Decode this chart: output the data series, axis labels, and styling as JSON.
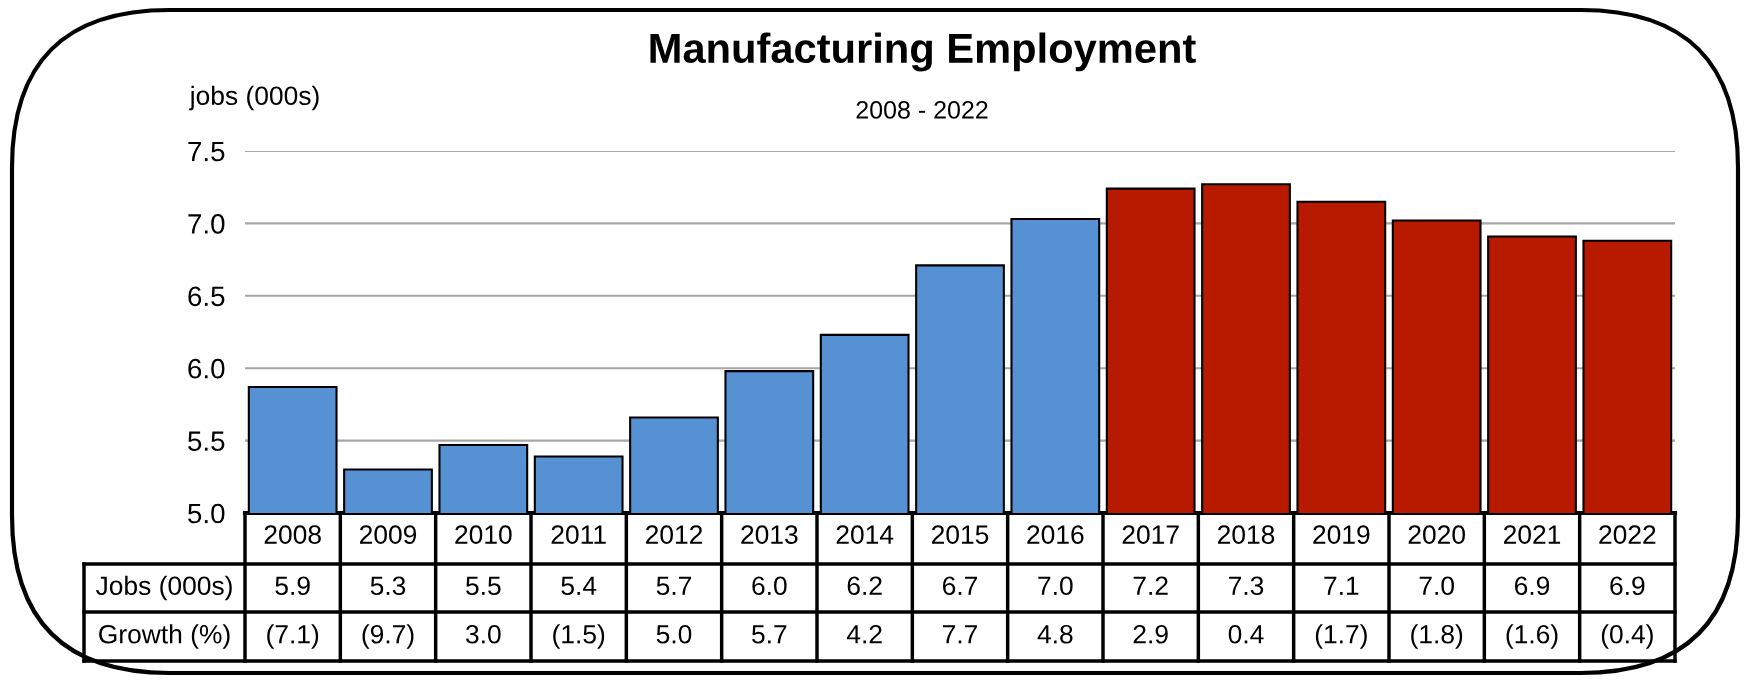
{
  "chart_data": {
    "type": "bar",
    "title": "Manufacturing Employment",
    "subtitle": "2008 - 2022",
    "ylabel": "jobs (000s)",
    "categories": [
      "2008",
      "2009",
      "2010",
      "2011",
      "2012",
      "2013",
      "2014",
      "2015",
      "2016",
      "2017",
      "2018",
      "2019",
      "2020",
      "2021",
      "2022"
    ],
    "series": [
      {
        "name": "Jobs (000s)",
        "values": [
          5.87,
          5.3,
          5.47,
          5.39,
          5.66,
          5.98,
          6.23,
          6.71,
          7.03,
          7.24,
          7.27,
          7.15,
          7.02,
          6.91,
          6.88
        ],
        "colors": [
          "#5591d3",
          "#5591d3",
          "#5591d3",
          "#5591d3",
          "#5591d3",
          "#5591d3",
          "#5591d3",
          "#5591d3",
          "#5591d3",
          "#b81a00",
          "#b81a00",
          "#b81a00",
          "#b81a00",
          "#b81a00",
          "#b81a00"
        ],
        "value_labels": [
          "5.9",
          "5.3",
          "5.5",
          "5.4",
          "5.7",
          "6.0",
          "6.2",
          "6.7",
          "7.0",
          "7.2",
          "7.3",
          "7.1",
          "7.0",
          "6.9",
          "6.9"
        ]
      }
    ],
    "ylim": [
      5.0,
      7.5
    ],
    "yticks": [
      {
        "value": 5.0,
        "label": "5.0"
      },
      {
        "value": 5.5,
        "label": "5.5"
      },
      {
        "value": 6.0,
        "label": "6.0"
      },
      {
        "value": 6.5,
        "label": "6.5"
      },
      {
        "value": 7.0,
        "label": "7.0"
      },
      {
        "value": 7.5,
        "label": "7.5"
      }
    ],
    "grid": "y",
    "legend": false,
    "annotations": [
      "Growth (%)",
      "(7.1)",
      "(9.7)",
      "3.0",
      "(1.5)",
      "5.0",
      "5.7",
      "4.2",
      "7.7",
      "4.8",
      "2.9",
      "0.4",
      "(1.7)",
      "(1.8)",
      "(1.6)",
      "(0.4)"
    ]
  }
}
